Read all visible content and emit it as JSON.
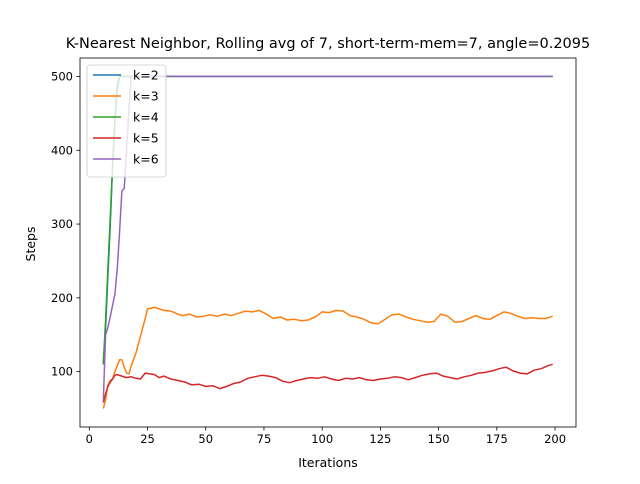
{
  "chart_data": {
    "type": "line",
    "title": "K-Nearest Neighbor, Rolling avg of 7, short-term-mem=7, angle=0.2095",
    "xlabel": "Iterations",
    "ylabel": "Steps",
    "xlim": [
      -4,
      209
    ],
    "ylim": [
      25,
      525
    ],
    "xticks": [
      0,
      25,
      50,
      75,
      100,
      125,
      150,
      175,
      200
    ],
    "yticks": [
      100,
      200,
      300,
      400,
      500
    ],
    "grid": false,
    "legend_position": "top-left",
    "series": [
      {
        "name": "k=2",
        "color": "#1f77b4",
        "points": [
          [
            6,
            110
          ],
          [
            7,
            160
          ],
          [
            8,
            230
          ],
          [
            9,
            300
          ],
          [
            10,
            380
          ],
          [
            11,
            440
          ],
          [
            12,
            490
          ],
          [
            13,
            500
          ],
          [
            50,
            500
          ],
          [
            100,
            500
          ],
          [
            150,
            500
          ],
          [
            199,
            500
          ]
        ]
      },
      {
        "name": "k=3",
        "color": "#ff7f0e",
        "points": [
          [
            6,
            50
          ],
          [
            7,
            62
          ],
          [
            8,
            82
          ],
          [
            9,
            88
          ],
          [
            10,
            90
          ],
          [
            11,
            100
          ],
          [
            12,
            108
          ],
          [
            13,
            116
          ],
          [
            14,
            116
          ],
          [
            15,
            106
          ],
          [
            16,
            98
          ],
          [
            17,
            97
          ],
          [
            18,
            108
          ],
          [
            20,
            125
          ],
          [
            22,
            148
          ],
          [
            24,
            172
          ],
          [
            25,
            185
          ],
          [
            28,
            187
          ],
          [
            30,
            185
          ],
          [
            32,
            183
          ],
          [
            35,
            182
          ],
          [
            38,
            178
          ],
          [
            40,
            176
          ],
          [
            43,
            178
          ],
          [
            46,
            174
          ],
          [
            49,
            175
          ],
          [
            52,
            177
          ],
          [
            55,
            175
          ],
          [
            58,
            178
          ],
          [
            61,
            176
          ],
          [
            64,
            179
          ],
          [
            67,
            182
          ],
          [
            70,
            181
          ],
          [
            73,
            183
          ],
          [
            76,
            178
          ],
          [
            79,
            172
          ],
          [
            82,
            174
          ],
          [
            85,
            170
          ],
          [
            88,
            171
          ],
          [
            91,
            169
          ],
          [
            94,
            170
          ],
          [
            97,
            174
          ],
          [
            100,
            181
          ],
          [
            103,
            180
          ],
          [
            106,
            183
          ],
          [
            109,
            182
          ],
          [
            112,
            176
          ],
          [
            115,
            174
          ],
          [
            118,
            171
          ],
          [
            121,
            166
          ],
          [
            124,
            165
          ],
          [
            127,
            171
          ],
          [
            130,
            177
          ],
          [
            133,
            178
          ],
          [
            136,
            174
          ],
          [
            139,
            171
          ],
          [
            142,
            169
          ],
          [
            145,
            167
          ],
          [
            148,
            168
          ],
          [
            151,
            178
          ],
          [
            154,
            175
          ],
          [
            157,
            167
          ],
          [
            160,
            168
          ],
          [
            163,
            172
          ],
          [
            166,
            176
          ],
          [
            169,
            172
          ],
          [
            172,
            171
          ],
          [
            175,
            176
          ],
          [
            178,
            181
          ],
          [
            181,
            179
          ],
          [
            184,
            175
          ],
          [
            187,
            172
          ],
          [
            190,
            173
          ],
          [
            193,
            172
          ],
          [
            196,
            172
          ],
          [
            199,
            175
          ]
        ]
      },
      {
        "name": "k=4",
        "color": "#2ca02c",
        "points": [
          [
            6,
            110
          ],
          [
            7,
            170
          ],
          [
            8,
            240
          ],
          [
            9,
            310
          ],
          [
            10,
            380
          ],
          [
            11,
            440
          ],
          [
            12,
            480
          ],
          [
            13,
            500
          ],
          [
            50,
            500
          ],
          [
            100,
            500
          ],
          [
            150,
            500
          ],
          [
            199,
            500
          ]
        ]
      },
      {
        "name": "k=5",
        "color": "#d62728",
        "points": [
          [
            6,
            58
          ],
          [
            7,
            70
          ],
          [
            8,
            80
          ],
          [
            9,
            86
          ],
          [
            10,
            90
          ],
          [
            11,
            95
          ],
          [
            12,
            96
          ],
          [
            14,
            94
          ],
          [
            16,
            92
          ],
          [
            18,
            93
          ],
          [
            20,
            91
          ],
          [
            22,
            90
          ],
          [
            24,
            98
          ],
          [
            26,
            97
          ],
          [
            28,
            96
          ],
          [
            30,
            92
          ],
          [
            32,
            94
          ],
          [
            35,
            90
          ],
          [
            38,
            88
          ],
          [
            41,
            86
          ],
          [
            44,
            82
          ],
          [
            47,
            83
          ],
          [
            50,
            80
          ],
          [
            53,
            81
          ],
          [
            56,
            77
          ],
          [
            59,
            80
          ],
          [
            62,
            84
          ],
          [
            65,
            86
          ],
          [
            68,
            91
          ],
          [
            71,
            93
          ],
          [
            74,
            95
          ],
          [
            77,
            94
          ],
          [
            80,
            92
          ],
          [
            83,
            87
          ],
          [
            86,
            85
          ],
          [
            89,
            88
          ],
          [
            92,
            90
          ],
          [
            95,
            92
          ],
          [
            98,
            91
          ],
          [
            101,
            93
          ],
          [
            104,
            90
          ],
          [
            107,
            88
          ],
          [
            110,
            91
          ],
          [
            113,
            90
          ],
          [
            116,
            92
          ],
          [
            119,
            89
          ],
          [
            122,
            88
          ],
          [
            125,
            90
          ],
          [
            128,
            91
          ],
          [
            131,
            93
          ],
          [
            134,
            92
          ],
          [
            137,
            89
          ],
          [
            140,
            92
          ],
          [
            143,
            95
          ],
          [
            146,
            97
          ],
          [
            149,
            98
          ],
          [
            152,
            94
          ],
          [
            155,
            92
          ],
          [
            158,
            90
          ],
          [
            161,
            93
          ],
          [
            164,
            95
          ],
          [
            167,
            98
          ],
          [
            170,
            99
          ],
          [
            173,
            101
          ],
          [
            176,
            104
          ],
          [
            179,
            106
          ],
          [
            182,
            101
          ],
          [
            185,
            98
          ],
          [
            188,
            97
          ],
          [
            191,
            102
          ],
          [
            194,
            104
          ],
          [
            197,
            108
          ],
          [
            199,
            110
          ]
        ]
      },
      {
        "name": "k=6",
        "color": "#9467bd",
        "points": [
          [
            6,
            60
          ],
          [
            7,
            150
          ],
          [
            8,
            160
          ],
          [
            9,
            175
          ],
          [
            10,
            190
          ],
          [
            11,
            205
          ],
          [
            12,
            240
          ],
          [
            13,
            290
          ],
          [
            14,
            345
          ],
          [
            15,
            348
          ],
          [
            16,
            400
          ],
          [
            17,
            455
          ],
          [
            18,
            500
          ],
          [
            50,
            500
          ],
          [
            100,
            500
          ],
          [
            150,
            500
          ],
          [
            199,
            500
          ]
        ]
      }
    ]
  }
}
